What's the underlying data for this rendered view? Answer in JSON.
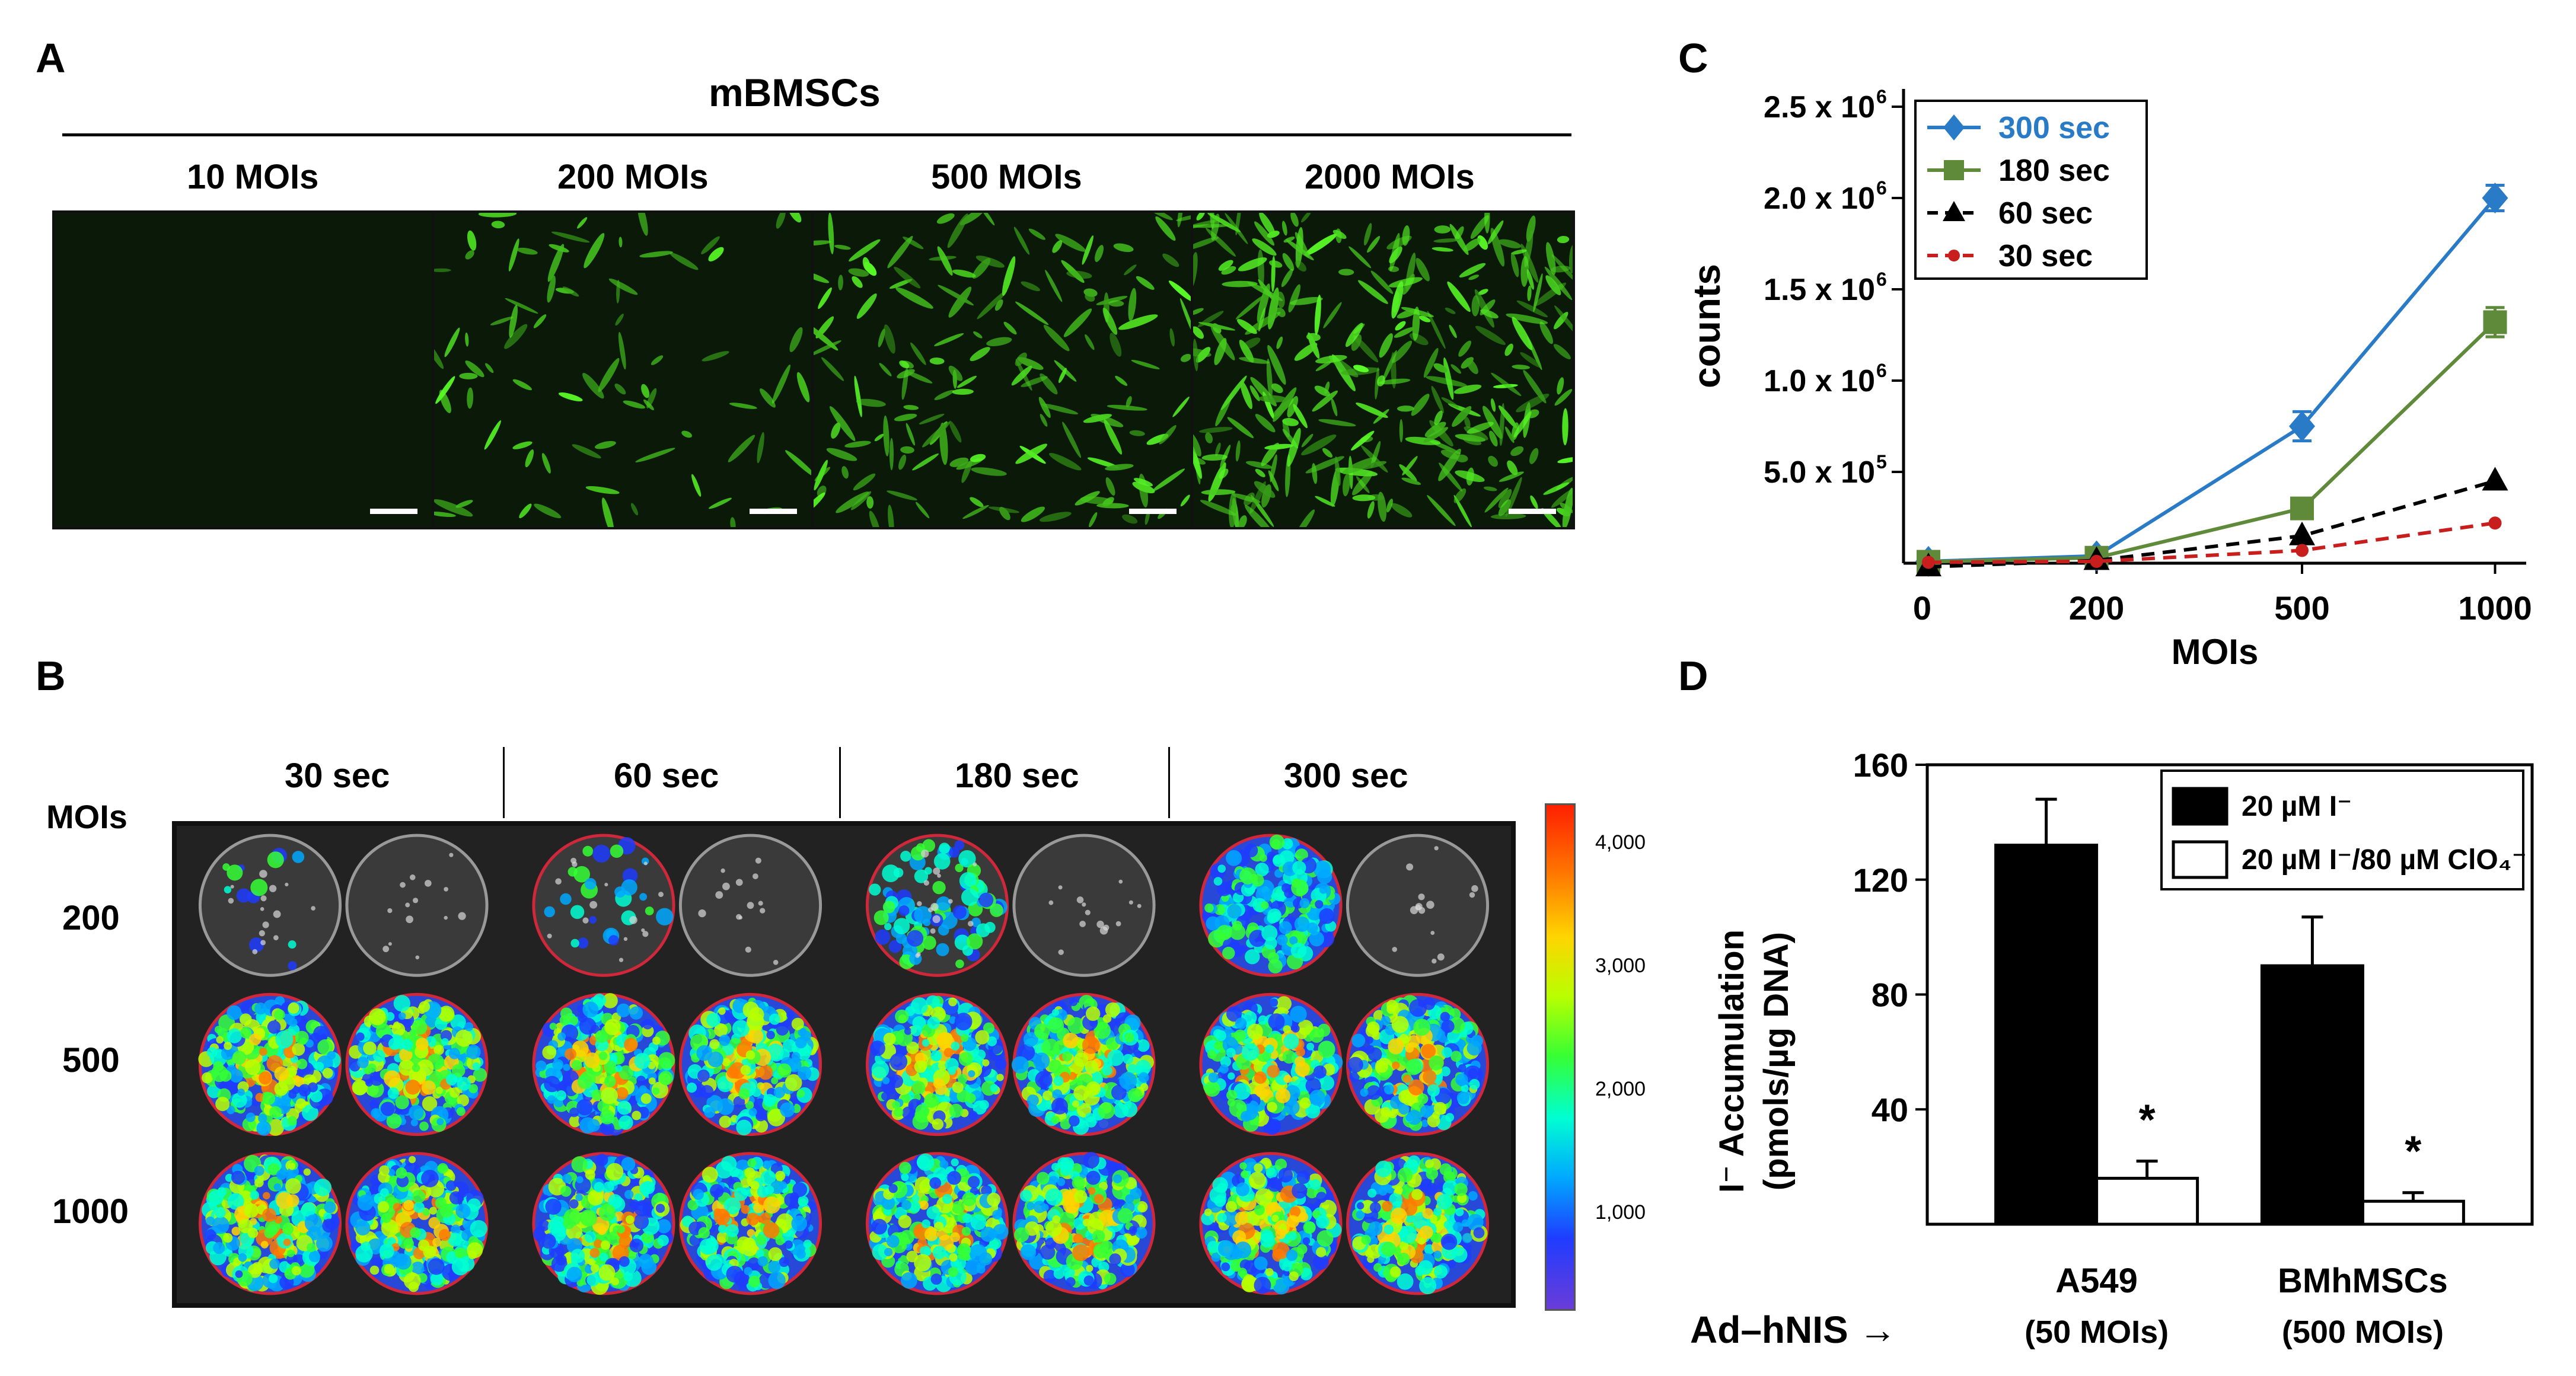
{
  "panelA": {
    "letter": "A",
    "title": "mBMSCs",
    "images": [
      {
        "label": "10 MOIs",
        "density": 0.0
      },
      {
        "label": "200 MOIs",
        "density": 0.25
      },
      {
        "label": "500 MOIs",
        "density": 0.55
      },
      {
        "label": "2000 MOIs",
        "density": 1.0
      }
    ]
  },
  "panelB": {
    "letter": "B",
    "row_header": "MOIs",
    "columns": [
      "30 sec",
      "60 sec",
      "180 sec",
      "300 sec"
    ],
    "rows": [
      "200",
      "500",
      "1000"
    ],
    "colorbar_ticks": [
      "4,000",
      "3,000",
      "2,000",
      "1,000"
    ]
  },
  "panelC": {
    "letter": "C",
    "chart_data": {
      "type": "line",
      "xlabel": "MOIs",
      "ylabel": "counts",
      "x": [
        10,
        200,
        500,
        1000
      ],
      "x_tick_labels": [
        "0",
        "200",
        "500",
        "1000"
      ],
      "y_tick_labels": [
        "5.0 x 10",
        "1.0 x 10",
        "1.5 x 10",
        "2.0 x 10",
        "2.5 x 10"
      ],
      "y_tick_exponents": [
        "5",
        "6",
        "6",
        "6",
        "6"
      ],
      "y_ticks": [
        500000,
        1000000,
        1500000,
        2000000,
        2500000
      ],
      "ylim": [
        0,
        2500000
      ],
      "legend_position": "top-left",
      "series": [
        {
          "name": "300 sec",
          "values": [
            10000,
            40000,
            750000,
            2000000
          ],
          "errors": [
            0,
            0,
            80000,
            70000
          ],
          "color": "#2a7bc7",
          "marker": "diamond",
          "dashed": false
        },
        {
          "name": "180 sec",
          "values": [
            8000,
            30000,
            300000,
            1320000
          ],
          "errors": [
            0,
            0,
            20000,
            80000
          ],
          "color": "#5e8a3a",
          "marker": "square",
          "dashed": false
        },
        {
          "name": "60 sec",
          "values": [
            -20000,
            15000,
            150000,
            450000
          ],
          "errors": [
            0,
            0,
            0,
            0
          ],
          "color": "#000000",
          "marker": "triangle",
          "dashed": true
        },
        {
          "name": "30 sec",
          "values": [
            5000,
            10000,
            70000,
            220000
          ],
          "errors": [
            0,
            0,
            0,
            0
          ],
          "color": "#c81e1e",
          "marker": "circle",
          "dashed": true
        }
      ]
    }
  },
  "panelD": {
    "letter": "D",
    "chart_data": {
      "type": "bar",
      "ylabel_line1": "I⁻ Accumulation",
      "ylabel_line2": "(pmols/µg DNA)",
      "y_ticks": [
        40,
        80,
        120,
        160
      ],
      "ylim": [
        0,
        160
      ],
      "categories": [
        "A549",
        "BMhMSCs"
      ],
      "category_sublabels": [
        "(50 MOIs)",
        "(500 MOIs)"
      ],
      "series": [
        {
          "name": "20 µM I⁻",
          "values": [
            132,
            90
          ],
          "errors": [
            16,
            17
          ],
          "fill": "#000000"
        },
        {
          "name": "20 µM I⁻/80 µM ClO₄⁻",
          "values": [
            16,
            8
          ],
          "errors": [
            6,
            3
          ],
          "fill": "#ffffff",
          "significance": "*"
        }
      ],
      "x_prefix_label": "Ad–hNIS →"
    }
  }
}
